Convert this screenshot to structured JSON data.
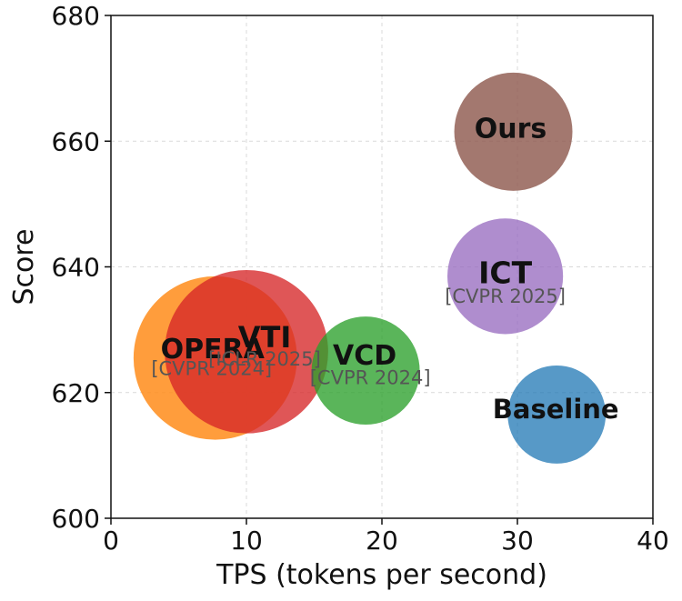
{
  "chart_data": {
    "type": "scatter",
    "title": "",
    "xlabel": "TPS (tokens per second)",
    "ylabel": "Score",
    "xlim": [
      0,
      40
    ],
    "ylim": [
      600,
      680
    ],
    "xticks": [
      0,
      10,
      20,
      30,
      40
    ],
    "yticks": [
      600,
      620,
      640,
      660,
      680
    ],
    "grid": true,
    "series": [
      {
        "name": "OPERA",
        "venue": "[CVPR 2024]",
        "x": 7.7,
        "y": 625.5,
        "size": 13,
        "color": "#ff8c1a",
        "opacity": 0.85
      },
      {
        "name": "VTI",
        "venue": "[ICLR 2025]",
        "x": 10.0,
        "y": 626.5,
        "size": 13,
        "color": "#d62728",
        "opacity": 0.78
      },
      {
        "name": "VCD",
        "venue": "[CVPR 2024]",
        "x": 18.8,
        "y": 623.5,
        "size": 8.6,
        "color": "#2ca02c",
        "opacity": 0.78
      },
      {
        "name": "ICT",
        "venue": "[CVPR 2025]",
        "x": 29.1,
        "y": 638.5,
        "size": 9.2,
        "color": "#9467bd",
        "opacity": 0.75
      },
      {
        "name": "Ours",
        "venue": "",
        "x": 29.7,
        "y": 661.5,
        "size": 9.4,
        "color": "#8c564b",
        "opacity": 0.8
      },
      {
        "name": "Baseline",
        "venue": "",
        "x": 32.9,
        "y": 616.5,
        "size": 7.8,
        "color": "#1f77b4",
        "opacity": 0.75
      }
    ]
  }
}
